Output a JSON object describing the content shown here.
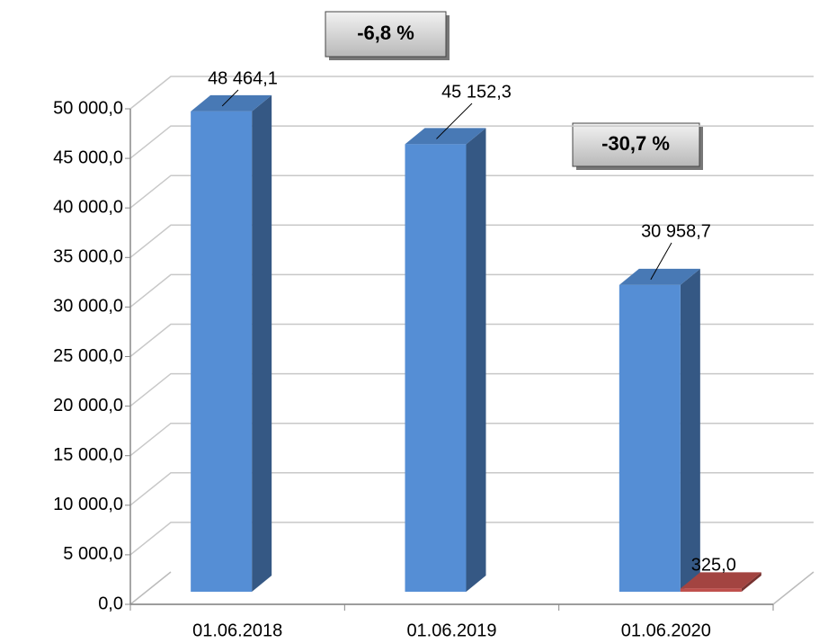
{
  "chart_data": {
    "type": "bar3d",
    "categories": [
      "01.06.2018",
      "01.06.2019",
      "01.06.2020"
    ],
    "series": [
      {
        "color": "#558ed5",
        "values": [
          48464.1,
          45152.3,
          30958.7
        ],
        "value_labels": [
          "48 464,1",
          "45 152,3",
          "30 958,7"
        ]
      },
      {
        "color": "#c0504d",
        "values": [
          null,
          null,
          325.0
        ],
        "value_labels": [
          null,
          null,
          "325,0"
        ]
      }
    ],
    "ylim": [
      0,
      50000
    ],
    "yticks": [
      {
        "value": 0,
        "label": "0,0"
      },
      {
        "value": 5000,
        "label": "5 000,0"
      },
      {
        "value": 10000,
        "label": "10 000,0"
      },
      {
        "value": 15000,
        "label": "15 000,0"
      },
      {
        "value": 20000,
        "label": "20 000,0"
      },
      {
        "value": 25000,
        "label": "25 000,0"
      },
      {
        "value": 30000,
        "label": "30 000,0"
      },
      {
        "value": 35000,
        "label": "35 000,0"
      },
      {
        "value": 40000,
        "label": "40 000,0"
      },
      {
        "value": 45000,
        "label": "45 000,0"
      },
      {
        "value": 50000,
        "label": "50 000,0"
      }
    ],
    "annotations": [
      "-6,8 %",
      "-30,7 %"
    ],
    "grid": true
  }
}
